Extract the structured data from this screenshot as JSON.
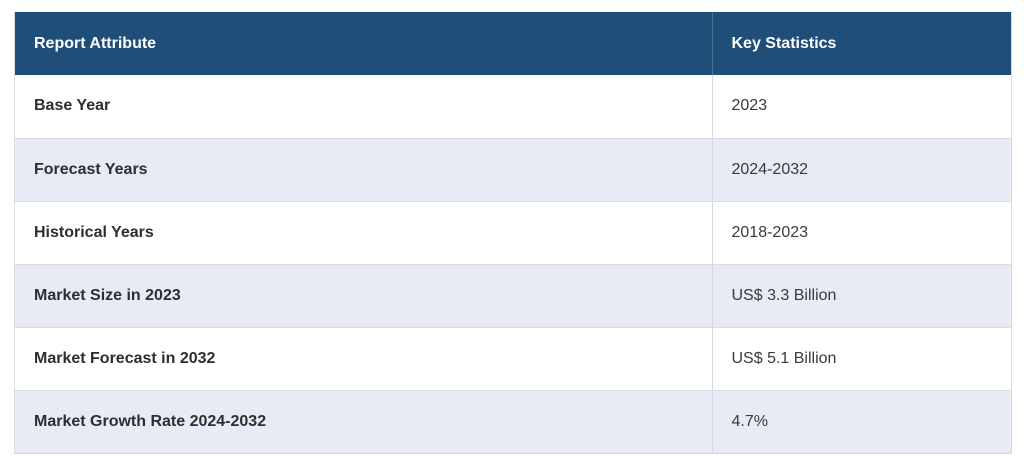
{
  "table": {
    "headers": [
      "Report Attribute",
      "Key Statistics"
    ],
    "rows": [
      {
        "attribute": "Base Year",
        "statistic": "2023"
      },
      {
        "attribute": "Forecast Years",
        "statistic": "2024-2032"
      },
      {
        "attribute": "Historical Years",
        "statistic": "2018-2023"
      },
      {
        "attribute": "Market Size in 2023",
        "statistic": "US$ 3.3 Billion"
      },
      {
        "attribute": "Market Forecast in 2032",
        "statistic": "US$ 5.1 Billion"
      },
      {
        "attribute": "Market Growth Rate 2024-2032",
        "statistic": "4.7%"
      }
    ]
  },
  "colors": {
    "header_background": "#1f4e79",
    "header_text": "#ffffff",
    "row_stripe": "#e8eaf5",
    "row_plain": "#ffffff"
  }
}
